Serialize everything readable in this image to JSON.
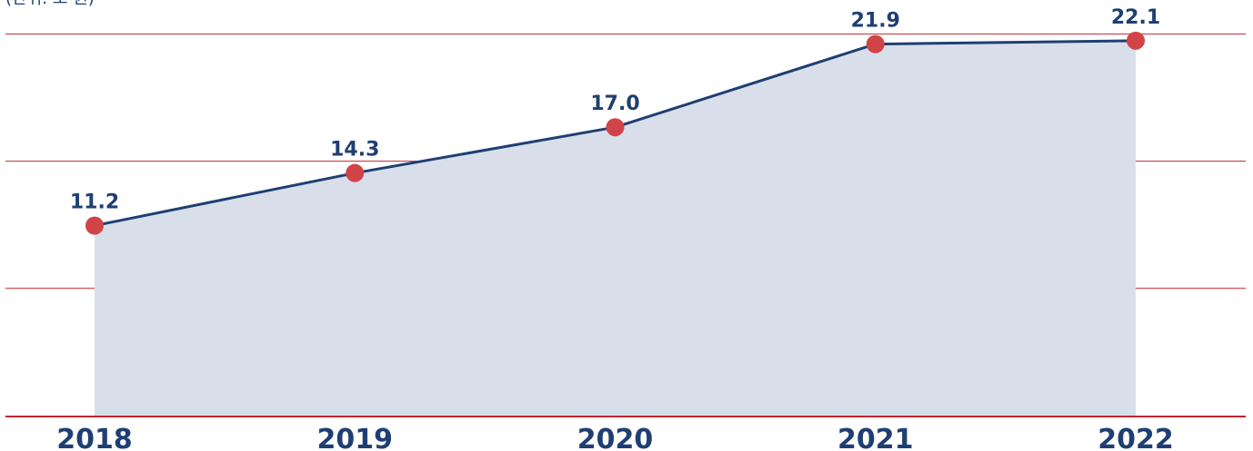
{
  "chart_data": {
    "type": "area",
    "title": "",
    "xlabel": "",
    "ylabel": "",
    "unit_note": "(단위: 조 원)",
    "categories": [
      "2018",
      "2019",
      "2020",
      "2021",
      "2022"
    ],
    "series": [
      {
        "values": [
          11.2,
          14.3,
          17.0,
          21.9,
          22.1
        ],
        "labels": [
          "11.2",
          "14.3",
          "17.0",
          "21.9",
          "22.1"
        ]
      }
    ],
    "ylim": [
      0,
      24.5
    ],
    "gridlines": [
      7.5,
      15,
      22.5
    ],
    "grid": true,
    "legend": "none",
    "colors": {
      "line": "#1f3f73",
      "area": "#d9dfea",
      "marker": "#d04448",
      "grid": "#c2252d",
      "baseline": "#c2252d",
      "text": "#1f3f73"
    }
  }
}
